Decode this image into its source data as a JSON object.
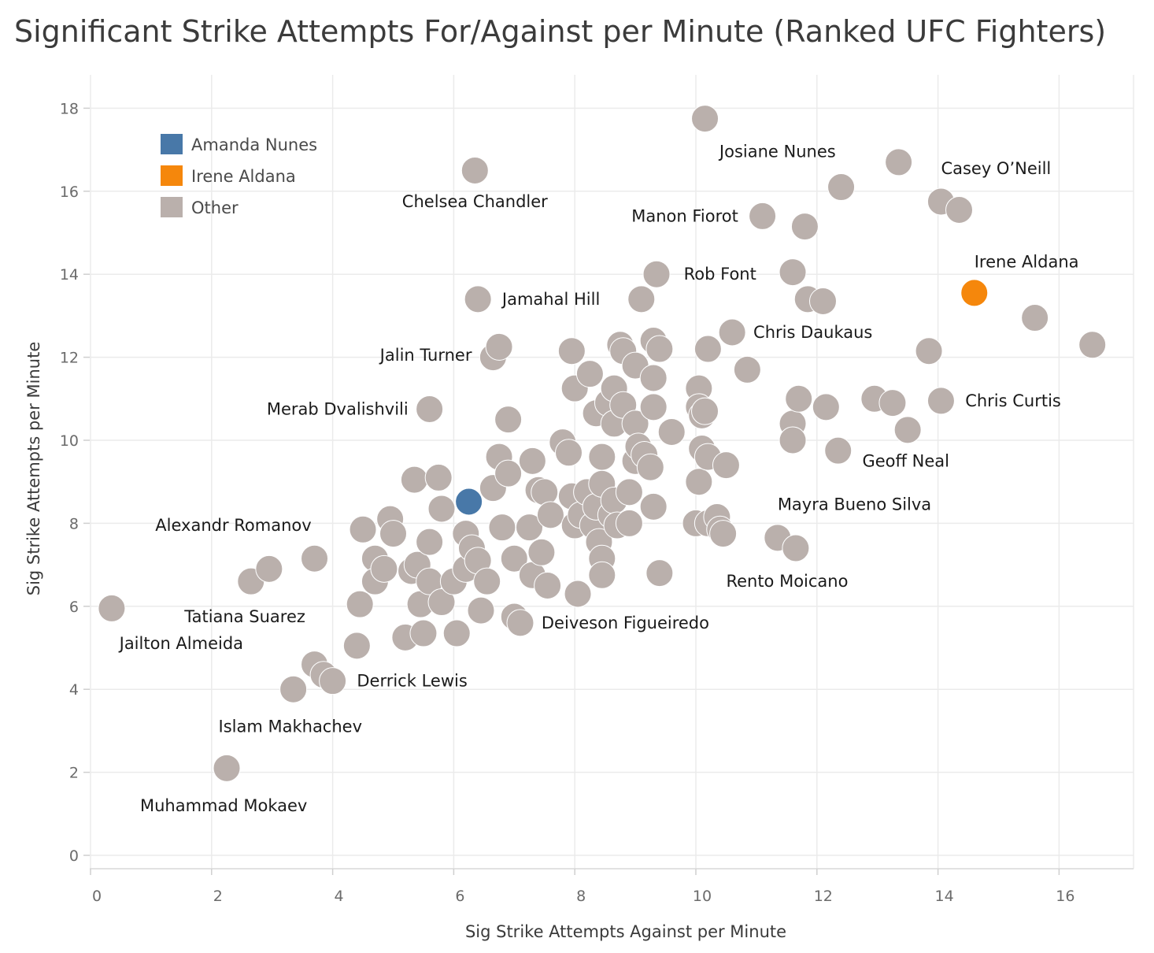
{
  "chart_data": {
    "type": "scatter",
    "title": "Significant Strike Attempts For/Against per Minute (Ranked UFC Fighters)",
    "xlabel": "Sig Strike Attempts Against per Minute",
    "ylabel": "Sig Strike Attempts per Minute",
    "xlim": [
      0,
      17.5
    ],
    "ylim": [
      0,
      18.9
    ],
    "xticks": [
      "0",
      "2",
      "4",
      "6",
      "8",
      "10",
      "12",
      "14",
      "16"
    ],
    "yticks": [
      "0",
      "2",
      "4",
      "6",
      "8",
      "10",
      "12",
      "14",
      "16",
      "18"
    ],
    "grid": true,
    "legend": {
      "position": "top-left",
      "items": [
        {
          "name": "Amanda Nunes",
          "color": "#4878a8"
        },
        {
          "name": "Irene Aldana",
          "color": "#f5870c"
        },
        {
          "name": "Other",
          "color": "#bab0ac"
        }
      ]
    },
    "series": [
      {
        "name": "Amanda Nunes",
        "color": "#4878a8",
        "points": [
          [
            6.25,
            8.52
          ]
        ]
      },
      {
        "name": "Irene Aldana",
        "color": "#f5870c",
        "points": [
          [
            14.6,
            13.55
          ]
        ]
      },
      {
        "name": "Other",
        "color": "#bab0ac",
        "points": [
          [
            0.35,
            5.95
          ],
          [
            2.25,
            2.1
          ],
          [
            2.65,
            6.6
          ],
          [
            2.95,
            6.9
          ],
          [
            3.35,
            4.0
          ],
          [
            3.7,
            4.6
          ],
          [
            3.85,
            4.35
          ],
          [
            4.0,
            4.2
          ],
          [
            3.7,
            7.15
          ],
          [
            4.4,
            5.05
          ],
          [
            4.45,
            6.05
          ],
          [
            4.5,
            7.85
          ],
          [
            4.7,
            7.15
          ],
          [
            4.7,
            6.6
          ],
          [
            4.85,
            6.9
          ],
          [
            4.95,
            8.1
          ],
          [
            5.0,
            7.75
          ],
          [
            5.2,
            5.25
          ],
          [
            5.3,
            6.85
          ],
          [
            5.35,
            9.05
          ],
          [
            5.4,
            7.0
          ],
          [
            5.45,
            6.05
          ],
          [
            5.5,
            5.35
          ],
          [
            5.6,
            6.6
          ],
          [
            5.6,
            10.75
          ],
          [
            5.6,
            7.55
          ],
          [
            5.75,
            9.1
          ],
          [
            5.8,
            8.35
          ],
          [
            5.8,
            6.1
          ],
          [
            6.0,
            6.6
          ],
          [
            6.05,
            5.35
          ],
          [
            6.2,
            6.9
          ],
          [
            6.2,
            7.75
          ],
          [
            6.3,
            7.4
          ],
          [
            6.35,
            16.5
          ],
          [
            6.4,
            13.4
          ],
          [
            6.4,
            7.1
          ],
          [
            6.45,
            5.9
          ],
          [
            6.55,
            6.6
          ],
          [
            6.65,
            8.85
          ],
          [
            6.65,
            12.0
          ],
          [
            6.75,
            9.6
          ],
          [
            6.75,
            12.25
          ],
          [
            6.8,
            7.9
          ],
          [
            6.9,
            10.5
          ],
          [
            6.9,
            9.2
          ],
          [
            7.0,
            7.15
          ],
          [
            7.0,
            5.75
          ],
          [
            7.1,
            5.6
          ],
          [
            7.3,
            9.5
          ],
          [
            7.25,
            7.9
          ],
          [
            7.3,
            6.75
          ],
          [
            7.4,
            8.8
          ],
          [
            7.45,
            7.3
          ],
          [
            7.5,
            8.75
          ],
          [
            7.55,
            6.5
          ],
          [
            7.6,
            8.2
          ],
          [
            7.8,
            9.95
          ],
          [
            7.9,
            9.7
          ],
          [
            7.95,
            12.15
          ],
          [
            7.95,
            8.65
          ],
          [
            8.0,
            7.95
          ],
          [
            8.05,
            6.3
          ],
          [
            8.0,
            11.25
          ],
          [
            8.1,
            8.2
          ],
          [
            8.2,
            8.75
          ],
          [
            8.25,
            11.6
          ],
          [
            8.3,
            7.95
          ],
          [
            8.35,
            10.65
          ],
          [
            8.35,
            8.4
          ],
          [
            8.4,
            7.55
          ],
          [
            8.45,
            9.6
          ],
          [
            8.45,
            8.95
          ],
          [
            8.45,
            7.15
          ],
          [
            8.45,
            6.75
          ],
          [
            8.55,
            10.9
          ],
          [
            8.6,
            8.2
          ],
          [
            8.65,
            11.25
          ],
          [
            8.65,
            10.4
          ],
          [
            8.65,
            8.55
          ],
          [
            8.7,
            7.95
          ],
          [
            8.75,
            12.3
          ],
          [
            8.8,
            10.85
          ],
          [
            8.8,
            12.15
          ],
          [
            8.9,
            8.75
          ],
          [
            8.9,
            8.0
          ],
          [
            9.0,
            11.8
          ],
          [
            9.0,
            10.4
          ],
          [
            9.0,
            9.5
          ],
          [
            9.05,
            9.85
          ],
          [
            9.1,
            13.4
          ],
          [
            9.15,
            9.65
          ],
          [
            9.25,
            9.35
          ],
          [
            9.3,
            12.4
          ],
          [
            9.3,
            10.8
          ],
          [
            9.3,
            11.5
          ],
          [
            9.3,
            8.4
          ],
          [
            9.35,
            14.0
          ],
          [
            9.4,
            12.2
          ],
          [
            9.4,
            6.8
          ],
          [
            9.6,
            10.2
          ],
          [
            10.0,
            8.0
          ],
          [
            10.05,
            11.25
          ],
          [
            10.05,
            10.8
          ],
          [
            10.05,
            9.0
          ],
          [
            10.1,
            10.6
          ],
          [
            10.1,
            9.8
          ],
          [
            10.15,
            10.7
          ],
          [
            10.15,
            17.75
          ],
          [
            10.2,
            12.2
          ],
          [
            10.2,
            9.6
          ],
          [
            10.2,
            8.0
          ],
          [
            10.35,
            8.15
          ],
          [
            10.4,
            7.85
          ],
          [
            10.45,
            7.75
          ],
          [
            10.5,
            9.4
          ],
          [
            10.6,
            12.6
          ],
          [
            10.85,
            11.7
          ],
          [
            11.1,
            15.4
          ],
          [
            11.35,
            7.65
          ],
          [
            11.6,
            10.4
          ],
          [
            11.6,
            10.0
          ],
          [
            11.6,
            14.05
          ],
          [
            11.65,
            7.4
          ],
          [
            11.7,
            11.0
          ],
          [
            11.8,
            15.15
          ],
          [
            11.85,
            13.4
          ],
          [
            12.1,
            13.35
          ],
          [
            12.15,
            10.8
          ],
          [
            12.35,
            9.75
          ],
          [
            12.4,
            16.1
          ],
          [
            12.95,
            11.0
          ],
          [
            13.25,
            10.9
          ],
          [
            13.35,
            16.7
          ],
          [
            13.5,
            10.25
          ],
          [
            13.85,
            12.15
          ],
          [
            14.05,
            10.95
          ],
          [
            14.05,
            15.75
          ],
          [
            14.35,
            15.55
          ],
          [
            15.6,
            12.95
          ],
          [
            16.55,
            12.3
          ]
        ]
      }
    ],
    "annotations": [
      {
        "text": "Josiane Nunes",
        "x": 11.35,
        "y": 16.95,
        "anchor": "middle"
      },
      {
        "text": "Casey O’Neill",
        "x": 14.05,
        "y": 16.55,
        "anchor": "start"
      },
      {
        "text": "Chelsea Chandler",
        "x": 6.35,
        "y": 15.75,
        "anchor": "middle"
      },
      {
        "text": "Manon Fiorot",
        "x": 10.7,
        "y": 15.4,
        "anchor": "end"
      },
      {
        "text": "Rob Font",
        "x": 9.8,
        "y": 14.0,
        "anchor": "start"
      },
      {
        "text": "Irene Aldana",
        "x": 14.6,
        "y": 14.3,
        "anchor": "start"
      },
      {
        "text": "Jamahal Hill",
        "x": 6.8,
        "y": 13.4,
        "anchor": "start"
      },
      {
        "text": "Chris Daukaus",
        "x": 10.95,
        "y": 12.6,
        "anchor": "start"
      },
      {
        "text": "Jalin Turner",
        "x": 6.3,
        "y": 12.05,
        "anchor": "end"
      },
      {
        "text": "Chris Curtis",
        "x": 14.45,
        "y": 10.95,
        "anchor": "start"
      },
      {
        "text": "Merab Dvalishvili",
        "x": 5.25,
        "y": 10.75,
        "anchor": "end"
      },
      {
        "text": "Geoff Neal",
        "x": 12.75,
        "y": 9.5,
        "anchor": "start"
      },
      {
        "text": "Mayra Bueno Silva",
        "x": 11.35,
        "y": 8.45,
        "anchor": "start"
      },
      {
        "text": "Alexandr Romanov",
        "x": 3.65,
        "y": 7.95,
        "anchor": "end"
      },
      {
        "text": "Rento Moicano",
        "x": 10.5,
        "y": 6.6,
        "anchor": "start"
      },
      {
        "text": "Tatiana Suarez",
        "x": 2.55,
        "y": 5.75,
        "anchor": "middle"
      },
      {
        "text": "Deiveson Figueiredo",
        "x": 7.45,
        "y": 5.6,
        "anchor": "start"
      },
      {
        "text": "Jailton Almeida",
        "x": 1.5,
        "y": 5.1,
        "anchor": "middle"
      },
      {
        "text": "Derrick Lewis",
        "x": 4.4,
        "y": 4.2,
        "anchor": "start"
      },
      {
        "text": "Islam Makhachev",
        "x": 3.3,
        "y": 3.1,
        "anchor": "middle"
      },
      {
        "text": "Muhammad Mokaev",
        "x": 2.2,
        "y": 1.2,
        "anchor": "middle"
      }
    ]
  }
}
